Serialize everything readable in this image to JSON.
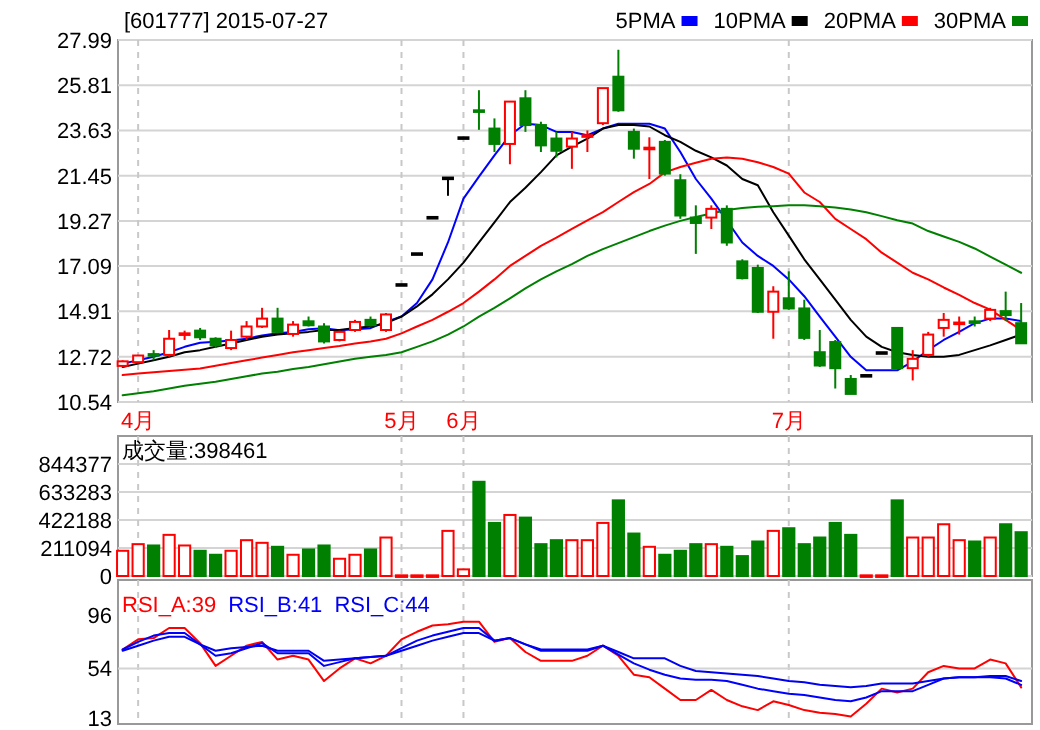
{
  "chart_data": [
    {
      "type": "candlestick",
      "title": "[601777] 2015-07-27",
      "categories": [
        null,
        "4月",
        null,
        null,
        null,
        null,
        null,
        null,
        null,
        null,
        null,
        null,
        null,
        null,
        null,
        null,
        null,
        null,
        "5月",
        null,
        null,
        null,
        "6月",
        null,
        null,
        null,
        null,
        null,
        null,
        null,
        null,
        null,
        null,
        null,
        null,
        null,
        null,
        null,
        null,
        null,
        null,
        null,
        null,
        "7月",
        null,
        null,
        null,
        null,
        null,
        null,
        null,
        null,
        null,
        null,
        null,
        null,
        null,
        null,
        null
      ],
      "ohlc": [
        [
          12.28,
          12.55,
          12.25,
          12.5
        ],
        [
          12.46,
          12.81,
          12.4,
          12.78
        ],
        [
          12.85,
          13.04,
          12.55,
          12.8
        ],
        [
          12.81,
          14.01,
          12.72,
          13.59
        ],
        [
          13.8,
          13.98,
          13.53,
          13.85
        ],
        [
          13.98,
          14.11,
          13.53,
          13.66
        ],
        [
          13.59,
          13.66,
          13.14,
          13.27
        ],
        [
          13.14,
          13.98,
          13.04,
          13.53
        ],
        [
          13.69,
          14.44,
          13.53,
          14.18
        ],
        [
          14.18,
          15.08,
          14.11,
          14.56
        ],
        [
          14.56,
          15.08,
          13.85,
          13.92
        ],
        [
          13.82,
          14.44,
          13.69,
          14.27
        ],
        [
          14.43,
          14.66,
          14.18,
          14.24
        ],
        [
          14.18,
          14.34,
          13.36,
          13.46
        ],
        [
          13.53,
          13.98,
          13.46,
          13.92
        ],
        [
          14.01,
          14.5,
          13.92,
          14.4
        ],
        [
          14.5,
          14.66,
          14.18,
          14.24
        ],
        [
          14.01,
          14.83,
          13.92,
          14.76
        ],
        [
          16.22,
          16.22,
          16.22,
          16.22
        ],
        [
          17.71,
          17.71,
          17.71,
          17.71
        ],
        [
          19.46,
          19.46,
          19.46,
          19.46
        ],
        [
          21.36,
          21.36,
          20.48,
          21.36
        ],
        [
          23.3,
          23.3,
          23.3,
          23.3
        ],
        [
          24.6,
          25.57,
          23.66,
          24.53
        ],
        [
          23.72,
          24.21,
          22.59,
          22.98
        ],
        [
          22.98,
          25.02,
          22.0,
          25.02
        ],
        [
          25.18,
          25.57,
          23.56,
          23.89
        ],
        [
          23.89,
          24.05,
          22.59,
          22.91
        ],
        [
          23.24,
          23.56,
          22.33,
          22.65
        ],
        [
          22.85,
          23.56,
          21.78,
          23.24
        ],
        [
          23.35,
          23.63,
          22.59,
          23.4
        ],
        [
          23.98,
          25.67,
          23.89,
          25.67
        ],
        [
          26.22,
          27.52,
          24.53,
          24.6
        ],
        [
          23.56,
          23.72,
          22.27,
          22.75
        ],
        [
          22.75,
          23.3,
          21.29,
          22.8
        ],
        [
          23.08,
          23.17,
          21.45,
          21.55
        ],
        [
          21.23,
          21.52,
          19.37,
          19.53
        ],
        [
          19.43,
          20.02,
          17.68,
          19.17
        ],
        [
          19.43,
          20.02,
          18.88,
          19.85
        ],
        [
          19.85,
          20.02,
          18.07,
          18.23
        ],
        [
          17.32,
          17.42,
          16.45,
          16.51
        ],
        [
          17.0,
          17.16,
          14.83,
          14.89
        ],
        [
          14.89,
          16.12,
          13.59,
          15.86
        ],
        [
          15.54,
          16.84,
          14.99,
          15.05
        ],
        [
          15.05,
          15.47,
          13.53,
          13.63
        ],
        [
          12.94,
          14.01,
          12.23,
          12.3
        ],
        [
          13.43,
          13.53,
          11.19,
          12.17
        ],
        [
          11.65,
          11.84,
          10.93,
          10.93
        ],
        [
          11.84,
          11.84,
          11.84,
          11.84
        ],
        [
          12.94,
          12.94,
          12.94,
          12.94
        ],
        [
          14.11,
          14.11,
          12.16,
          12.17
        ],
        [
          12.17,
          13.04,
          11.58,
          12.62
        ],
        [
          12.81,
          13.92,
          12.72,
          13.79
        ],
        [
          14.11,
          14.83,
          13.69,
          14.5
        ],
        [
          14.33,
          14.66,
          13.79,
          14.37
        ],
        [
          14.43,
          14.66,
          14.18,
          14.4
        ],
        [
          14.56,
          15.08,
          14.44,
          14.98
        ],
        [
          14.92,
          15.86,
          14.44,
          14.73
        ],
        [
          14.34,
          15.31,
          13.36,
          13.37
        ]
      ],
      "colors": [
        "#ff0000",
        "#ff0000",
        "#008000",
        "#ff0000",
        "#ff0000",
        "#008000",
        "#008000",
        "#ff0000",
        "#ff0000",
        "#ff0000",
        "#008000",
        "#ff0000",
        "#008000",
        "#008000",
        "#ff0000",
        "#ff0000",
        "#008000",
        "#ff0000",
        "#000000",
        "#000000",
        "#000000",
        "#000000",
        "#000000",
        "#008000",
        "#008000",
        "#ff0000",
        "#008000",
        "#008000",
        "#008000",
        "#ff0000",
        "#ff0000",
        "#ff0000",
        "#008000",
        "#008000",
        "#ff0000",
        "#008000",
        "#008000",
        "#008000",
        "#ff0000",
        "#008000",
        "#008000",
        "#008000",
        "#ff0000",
        "#008000",
        "#008000",
        "#008000",
        "#008000",
        "#008000",
        "#000000",
        "#000000",
        "#008000",
        "#ff0000",
        "#ff0000",
        "#ff0000",
        "#ff0000",
        "#008000",
        "#ff0000",
        "#008000",
        "#008000"
      ],
      "series": [
        {
          "name": "5PMA",
          "type": "line",
          "color": "#0000ff",
          "values": [
            12.39,
            12.55,
            12.72,
            12.94,
            13.2,
            13.4,
            13.45,
            13.5,
            13.59,
            13.75,
            13.85,
            13.92,
            14.05,
            14.1,
            14.0,
            14.05,
            14.1,
            14.4,
            14.66,
            15.31,
            16.45,
            18.23,
            20.34,
            21.4,
            22.43,
            23.4,
            23.95,
            23.89,
            23.56,
            23.56,
            23.4,
            23.72,
            23.95,
            23.95,
            23.95,
            23.72,
            22.59,
            21.29,
            20.34,
            null,
            18.23,
            17.58,
            17.1,
            16.45,
            15.64,
            14.66,
            13.69,
            12.72,
            12.07,
            12.07,
            12.07,
            12.49,
            13.04,
            13.53,
            13.92,
            14.34,
            14.56,
            14.56,
            14.44
          ]
        },
        {
          "name": "10PMA",
          "type": "line",
          "color": "#000000",
          "values": [
            12.23,
            12.39,
            12.55,
            12.72,
            12.94,
            13.04,
            13.2,
            13.36,
            13.53,
            13.69,
            13.79,
            13.85,
            13.92,
            14.01,
            14.01,
            14.11,
            14.18,
            14.34,
            14.66,
            15.15,
            15.73,
            16.45,
            17.26,
            18.23,
            19.2,
            20.18,
            20.87,
            21.62,
            22.43,
            22.85,
            23.24,
            23.72,
            23.89,
            23.89,
            23.82,
            23.4,
            23.08,
            22.65,
            22.33,
            21.94,
            21.29,
            20.99,
            19.69,
            18.56,
            17.42,
            16.45,
            15.47,
            14.5,
            13.69,
            13.2,
            12.94,
            12.81,
            12.72,
            12.72,
            12.81,
            13.04,
            13.27,
            13.53,
            13.79
          ]
        },
        {
          "name": "20PMA",
          "type": "line",
          "color": "#ff0000",
          "values": [
            11.84,
            11.91,
            11.97,
            12.04,
            12.1,
            12.16,
            12.29,
            12.42,
            12.55,
            12.68,
            12.81,
            12.94,
            13.04,
            13.14,
            13.24,
            13.36,
            13.46,
            13.59,
            13.85,
            14.18,
            14.5,
            14.89,
            15.31,
            15.86,
            16.45,
            17.1,
            17.58,
            18.07,
            18.46,
            18.88,
            19.3,
            19.69,
            20.18,
            20.66,
            21.05,
            21.61,
            21.87,
            22.07,
            22.27,
            22.33,
            22.27,
            22.1,
            21.87,
            21.55,
            20.64,
            20.18,
            19.37,
            18.88,
            18.39,
            17.74,
            17.26,
            16.77,
            16.45,
            16.06,
            15.7,
            15.31,
            14.99,
            14.5,
            14.01
          ]
        },
        {
          "name": "30PMA",
          "type": "line",
          "color": "#008000",
          "values": [
            10.87,
            10.96,
            11.06,
            11.19,
            11.32,
            11.42,
            11.52,
            11.65,
            11.78,
            11.91,
            12.0,
            12.13,
            12.23,
            12.36,
            12.49,
            12.62,
            12.72,
            12.81,
            12.94,
            13.2,
            13.46,
            13.79,
            14.18,
            14.66,
            15.08,
            15.54,
            16.02,
            16.45,
            16.84,
            17.19,
            17.58,
            17.91,
            18.2,
            18.49,
            18.78,
            19.04,
            19.27,
            19.46,
            19.63,
            19.79,
            19.89,
            19.95,
            19.98,
            20.02,
            20.02,
            19.98,
            19.92,
            19.82,
            19.69,
            19.5,
            19.3,
            19.14,
            18.78,
            18.52,
            18.26,
            17.94,
            17.55,
            17.16,
            16.77
          ]
        }
      ],
      "ylim": [
        10.54,
        27.99
      ],
      "yticks": [
        10.54,
        12.72,
        14.91,
        17.09,
        19.27,
        21.45,
        23.63,
        25.81,
        27.99
      ],
      "grid": true,
      "legend": "top right"
    },
    {
      "type": "bar",
      "title": "成交量:398461",
      "categories": [
        null,
        null,
        null,
        null,
        null,
        null,
        null,
        null,
        null,
        null,
        null,
        null,
        null,
        null,
        null,
        null,
        null,
        null,
        null,
        null,
        null,
        null,
        null,
        null,
        null,
        null,
        null,
        null,
        null,
        null,
        null,
        null,
        null,
        null,
        null,
        null,
        null,
        null,
        null,
        null,
        null,
        null,
        null,
        null,
        null,
        null,
        null,
        null,
        null,
        null,
        null,
        null,
        null,
        null,
        null,
        null,
        null,
        null,
        null
      ],
      "values": [
        190000,
        240000,
        230000,
        310000,
        230000,
        190000,
        160000,
        190000,
        270000,
        250000,
        220000,
        160000,
        200000,
        230000,
        130000,
        160000,
        200000,
        290000,
        5000,
        5000,
        5000,
        340000,
        50000,
        710000,
        400000,
        460000,
        440000,
        240000,
        270000,
        270000,
        270000,
        400000,
        570000,
        320000,
        220000,
        160000,
        190000,
        240000,
        240000,
        220000,
        150000,
        260000,
        340000,
        360000,
        240000,
        290000,
        400000,
        310000,
        5000,
        5000,
        570000,
        290000,
        290000,
        390000,
        270000,
        260000,
        290000,
        390000,
        330000
      ],
      "colors": [
        "#ff0000",
        "#ff0000",
        "#008000",
        "#ff0000",
        "#ff0000",
        "#008000",
        "#008000",
        "#ff0000",
        "#ff0000",
        "#ff0000",
        "#008000",
        "#ff0000",
        "#008000",
        "#008000",
        "#ff0000",
        "#ff0000",
        "#008000",
        "#ff0000",
        "#ff0000",
        "#ff0000",
        "#ff0000",
        "#ff0000",
        "#ff0000",
        "#008000",
        "#008000",
        "#ff0000",
        "#008000",
        "#008000",
        "#008000",
        "#ff0000",
        "#ff0000",
        "#ff0000",
        "#008000",
        "#008000",
        "#ff0000",
        "#008000",
        "#008000",
        "#008000",
        "#ff0000",
        "#008000",
        "#008000",
        "#008000",
        "#ff0000",
        "#008000",
        "#008000",
        "#008000",
        "#008000",
        "#008000",
        "#ff0000",
        "#ff0000",
        "#008000",
        "#ff0000",
        "#ff0000",
        "#ff0000",
        "#ff0000",
        "#008000",
        "#ff0000",
        "#008000",
        "#008000"
      ],
      "ylim": [
        0,
        1055000
      ],
      "yticks": [
        0,
        211094,
        422188,
        633283,
        844377
      ],
      "grid": true,
      "tick_labels": "y"
    },
    {
      "type": "line",
      "categories": [
        null,
        null,
        null,
        null,
        null,
        null,
        null,
        null,
        null,
        null,
        null,
        null,
        null,
        null,
        null,
        null,
        null,
        null,
        null,
        null,
        null,
        null,
        null,
        null,
        null,
        null,
        null,
        null,
        null,
        null,
        null,
        null,
        null,
        null,
        null,
        null,
        null,
        null,
        null,
        null,
        null,
        null,
        null,
        null,
        null,
        null,
        null,
        null,
        null,
        null,
        null,
        null,
        null,
        null,
        null,
        null,
        null,
        null,
        null
      ],
      "series": [
        {
          "name": "RSI_A:39",
          "color": "#ff0000",
          "values": [
            69,
            77,
            78,
            86,
            86,
            74,
            56,
            64,
            72,
            75,
            61,
            64,
            61,
            44,
            54,
            62,
            58,
            64,
            77,
            83,
            88,
            89,
            91,
            91,
            75,
            78,
            67,
            60,
            60,
            60,
            64,
            72,
            64,
            49,
            47,
            38,
            29,
            29,
            37,
            29,
            24,
            21,
            28,
            25,
            21,
            19,
            18,
            16,
            26,
            38,
            35,
            38,
            51,
            56,
            54,
            54,
            61,
            58,
            39
          ]
        },
        {
          "name": "RSI_B:41",
          "color": "#0000ff",
          "values": [
            69,
            75,
            80,
            82,
            82,
            73,
            64,
            66,
            70,
            74,
            66,
            66,
            66,
            56,
            59,
            62,
            63,
            64,
            70,
            76,
            80,
            83,
            86,
            86,
            76,
            78,
            73,
            68,
            68,
            68,
            68,
            72,
            65,
            58,
            53,
            49,
            46,
            45,
            45,
            44,
            41,
            38,
            36,
            34,
            33,
            31,
            29,
            28,
            31,
            36,
            36,
            36,
            41,
            46,
            47,
            47,
            47,
            46,
            41
          ]
        },
        {
          "name": "RSI_C:44",
          "color": "#0000f0",
          "values": [
            68,
            72,
            76,
            79,
            79,
            73,
            68,
            70,
            71,
            72,
            68,
            68,
            68,
            60,
            61,
            62,
            63,
            64,
            68,
            72,
            76,
            79,
            82,
            82,
            76,
            78,
            73,
            69,
            69,
            69,
            69,
            72,
            67,
            62,
            62,
            62,
            56,
            52,
            51,
            50,
            49,
            48,
            46,
            44,
            43,
            41,
            40,
            39,
            40,
            42,
            42,
            42,
            44,
            46,
            47,
            47,
            48,
            48,
            44
          ]
        }
      ],
      "ylim": [
        10,
        124
      ],
      "yticks": [
        13,
        54,
        96
      ],
      "grid": "x",
      "ref_lines": [
        {
          "axis": "y",
          "value": 54,
          "color": "#d4d4d4"
        }
      ],
      "legend": "top left",
      "tick_labels": "y"
    }
  ]
}
